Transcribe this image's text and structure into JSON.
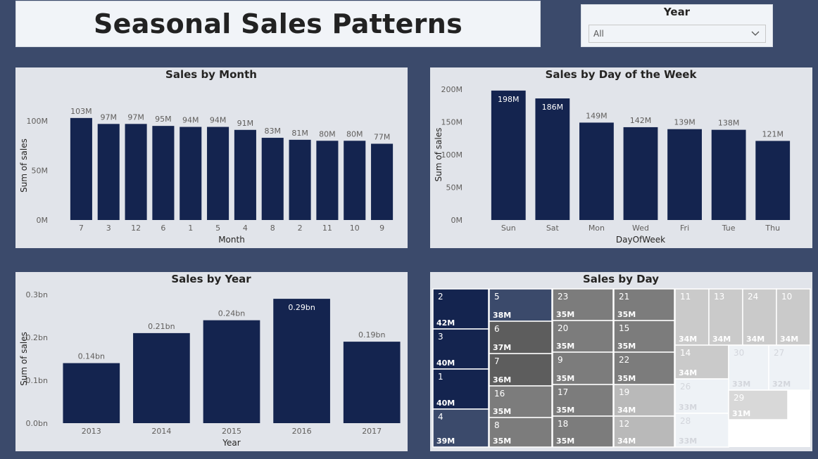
{
  "report": {
    "title": "Seasonal Sales Patterns"
  },
  "filter": {
    "label": "Year",
    "selected": "All"
  },
  "colors": {
    "bar": "#14244f",
    "panel": "#e1e4ea",
    "background": "#3b4a6b"
  },
  "chart_data": [
    {
      "id": "month",
      "type": "bar",
      "title": "Sales by Month",
      "xlabel": "Month",
      "ylabel": "Sum of sales",
      "ylim": [
        0,
        110
      ],
      "yticks": [
        0,
        50,
        100
      ],
      "ytick_labels": [
        "0M",
        "50M",
        "100M"
      ],
      "categories": [
        "7",
        "3",
        "12",
        "6",
        "1",
        "5",
        "4",
        "8",
        "2",
        "11",
        "10",
        "9"
      ],
      "values": [
        103,
        97,
        97,
        95,
        94,
        94,
        91,
        83,
        81,
        80,
        80,
        77
      ],
      "labels": [
        "103M",
        "97M",
        "97M",
        "95M",
        "94M",
        "94M",
        "91M",
        "83M",
        "81M",
        "80M",
        "80M",
        "77M"
      ]
    },
    {
      "id": "dow",
      "type": "bar",
      "title": "Sales by Day of the Week",
      "xlabel": "DayOfWeek",
      "ylabel": "Sum of sales",
      "ylim": [
        0,
        200
      ],
      "yticks": [
        0,
        50,
        100,
        150,
        200
      ],
      "ytick_labels": [
        "0M",
        "50M",
        "100M",
        "150M",
        "200M"
      ],
      "categories": [
        "Sun",
        "Sat",
        "Mon",
        "Wed",
        "Fri",
        "Tue",
        "Thu"
      ],
      "values": [
        198,
        186,
        149,
        142,
        139,
        138,
        121
      ],
      "labels": [
        "198M",
        "186M",
        "149M",
        "142M",
        "139M",
        "138M",
        "121M"
      ]
    },
    {
      "id": "year",
      "type": "bar",
      "title": "Sales by Year",
      "xlabel": "Year",
      "ylabel": "Sum of sales",
      "ylim": [
        0,
        0.3
      ],
      "yticks": [
        0,
        0.1,
        0.2,
        0.3
      ],
      "ytick_labels": [
        "0.0bn",
        "0.1bn",
        "0.2bn",
        "0.3bn"
      ],
      "categories": [
        "2013",
        "2014",
        "2015",
        "2016",
        "2017"
      ],
      "values": [
        0.14,
        0.21,
        0.24,
        0.29,
        0.19
      ],
      "labels": [
        "0.14bn",
        "0.21bn",
        "0.24bn",
        "0.29bn",
        "0.19bn"
      ]
    },
    {
      "id": "day",
      "type": "treemap",
      "title": "Sales by Day",
      "items": [
        {
          "day": "2",
          "value": 42,
          "label": "42M"
        },
        {
          "day": "3",
          "value": 40,
          "label": "40M"
        },
        {
          "day": "1",
          "value": 40,
          "label": "40M"
        },
        {
          "day": "4",
          "value": 39,
          "label": "39M"
        },
        {
          "day": "5",
          "value": 38,
          "label": "38M"
        },
        {
          "day": "6",
          "value": 37,
          "label": "37M"
        },
        {
          "day": "7",
          "value": 36,
          "label": "36M"
        },
        {
          "day": "16",
          "value": 35,
          "label": "35M"
        },
        {
          "day": "8",
          "value": 35,
          "label": "35M"
        },
        {
          "day": "23",
          "value": 35,
          "label": "35M"
        },
        {
          "day": "20",
          "value": 35,
          "label": "35M"
        },
        {
          "day": "9",
          "value": 35,
          "label": "35M"
        },
        {
          "day": "17",
          "value": 35,
          "label": "35M"
        },
        {
          "day": "18",
          "value": 35,
          "label": "35M"
        },
        {
          "day": "21",
          "value": 35,
          "label": "35M"
        },
        {
          "day": "15",
          "value": 35,
          "label": "35M"
        },
        {
          "day": "22",
          "value": 35,
          "label": "35M"
        },
        {
          "day": "19",
          "value": 34,
          "label": "34M"
        },
        {
          "day": "12",
          "value": 34,
          "label": "34M"
        },
        {
          "day": "11",
          "value": 34,
          "label": "34M"
        },
        {
          "day": "13",
          "value": 34,
          "label": "34M"
        },
        {
          "day": "24",
          "value": 34,
          "label": "34M"
        },
        {
          "day": "10",
          "value": 34,
          "label": "34M"
        },
        {
          "day": "14",
          "value": 34,
          "label": "34M"
        },
        {
          "day": "30",
          "value": 33,
          "label": "33M"
        },
        {
          "day": "27",
          "value": 32,
          "label": "32M"
        },
        {
          "day": "26",
          "value": 33,
          "label": "33M"
        },
        {
          "day": "28",
          "value": 33,
          "label": "33M"
        },
        {
          "day": "29",
          "value": 31,
          "label": "31M"
        }
      ]
    }
  ]
}
